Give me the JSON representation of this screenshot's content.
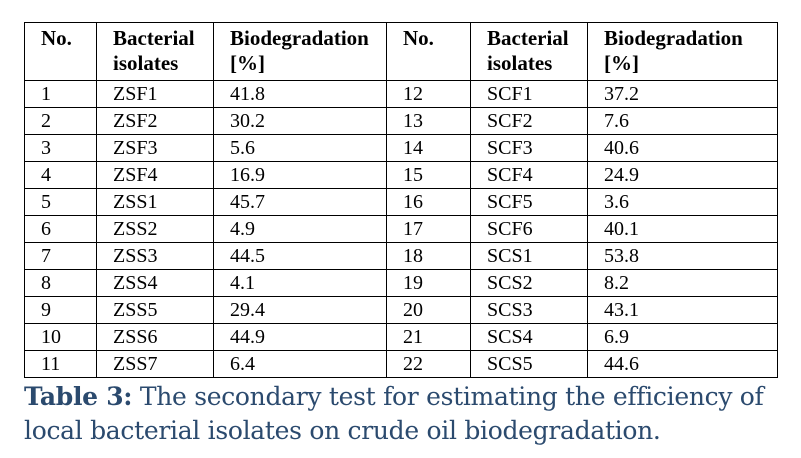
{
  "table": {
    "headers": [
      "No.",
      "Bacterial isolates",
      "Biodegradation [%]",
      "No.",
      "Bacterial isolates",
      "Biodegradation [%]"
    ],
    "rows": [
      [
        "1",
        "ZSF1",
        "41.8",
        "12",
        "SCF1",
        "37.2"
      ],
      [
        "2",
        "ZSF2",
        "30.2",
        "13",
        "SCF2",
        "7.6"
      ],
      [
        "3",
        "ZSF3",
        "5.6",
        "14",
        "SCF3",
        "40.6"
      ],
      [
        "4",
        "ZSF4",
        "16.9",
        "15",
        "SCF4",
        "24.9"
      ],
      [
        "5",
        "ZSS1",
        "45.7",
        "16",
        "SCF5",
        "3.6"
      ],
      [
        "6",
        "ZSS2",
        "4.9",
        "17",
        "SCF6",
        "40.1"
      ],
      [
        "7",
        "ZSS3",
        "44.5",
        "18",
        "SCS1",
        "53.8"
      ],
      [
        "8",
        "ZSS4",
        "4.1",
        "19",
        "SCS2",
        "8.2"
      ],
      [
        "9",
        "ZSS5",
        "29.4",
        "20",
        "SCS3",
        "43.1"
      ],
      [
        "10",
        "ZSS6",
        "44.9",
        "21",
        "SCS4",
        "6.9"
      ],
      [
        "11",
        "ZSS7",
        "6.4",
        "22",
        "SCS5",
        "44.6"
      ]
    ]
  },
  "caption": {
    "label": "Table 3:",
    "text": " The secondary test for estimating the efficiency of local bacterial isolates on crude oil biodegradation."
  },
  "colors": {
    "caption": "#2b4a6e",
    "border": "#000000"
  }
}
